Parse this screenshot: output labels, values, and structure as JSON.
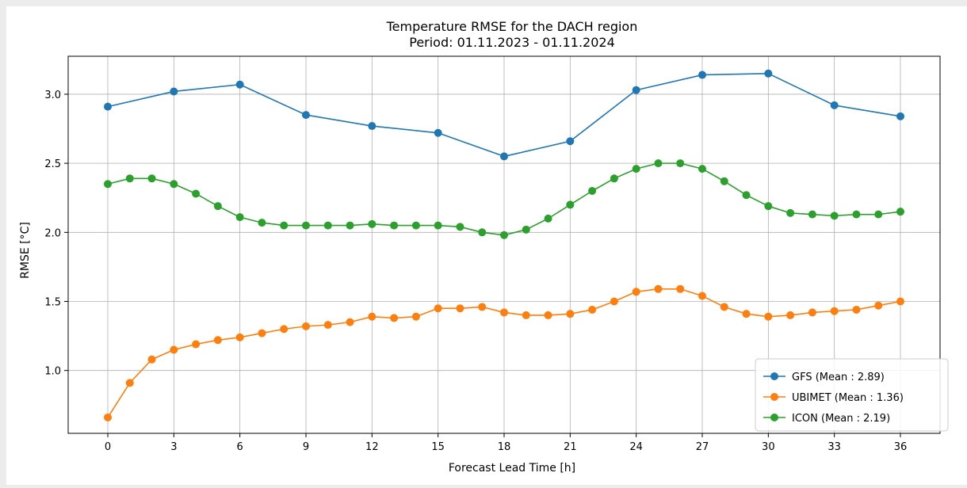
{
  "chart_data": {
    "type": "line",
    "title": "Temperature RMSE for the DACH region",
    "subtitle": "Period: 01.11.2023 - 01.11.2024",
    "xlabel": "Forecast Lead Time [h]",
    "ylabel": "RMSE [°C]",
    "xlim": [
      -1.8,
      37.8
    ],
    "ylim": [
      0.545,
      3.275
    ],
    "xticks": [
      0,
      3,
      6,
      9,
      12,
      15,
      18,
      21,
      24,
      27,
      30,
      33,
      36
    ],
    "yticks": [
      1.0,
      1.5,
      2.0,
      2.5,
      3.0
    ],
    "ytick_labels": [
      "1.0",
      "1.5",
      "2.0",
      "2.5",
      "3.0"
    ],
    "grid": true,
    "legend_position": "lower-right",
    "series": [
      {
        "name": "GFS (Mean : 2.89)",
        "color": "#1f77b4",
        "x": [
          0,
          3,
          6,
          9,
          12,
          15,
          18,
          21,
          24,
          27,
          30,
          33,
          36
        ],
        "y": [
          2.91,
          3.02,
          3.07,
          2.85,
          2.77,
          2.72,
          2.55,
          2.66,
          3.03,
          3.14,
          3.15,
          2.92,
          2.84
        ]
      },
      {
        "name": "UBIMET (Mean : 1.36)",
        "color": "#ff7f0e",
        "x": [
          0,
          1,
          2,
          3,
          4,
          5,
          6,
          7,
          8,
          9,
          10,
          11,
          12,
          13,
          14,
          15,
          16,
          17,
          18,
          19,
          20,
          21,
          22,
          23,
          24,
          25,
          26,
          27,
          28,
          29,
          30,
          31,
          32,
          33,
          34,
          35,
          36
        ],
        "y": [
          0.66,
          0.91,
          1.08,
          1.15,
          1.19,
          1.22,
          1.24,
          1.27,
          1.3,
          1.32,
          1.33,
          1.35,
          1.39,
          1.38,
          1.39,
          1.45,
          1.45,
          1.46,
          1.42,
          1.4,
          1.4,
          1.41,
          1.44,
          1.5,
          1.57,
          1.59,
          1.59,
          1.54,
          1.46,
          1.41,
          1.39,
          1.4,
          1.42,
          1.43,
          1.44,
          1.47,
          1.5
        ]
      },
      {
        "name": "ICON (Mean : 2.19)",
        "color": "#2ca02c",
        "x": [
          0,
          1,
          2,
          3,
          4,
          5,
          6,
          7,
          8,
          9,
          10,
          11,
          12,
          13,
          14,
          15,
          16,
          17,
          18,
          19,
          20,
          21,
          22,
          23,
          24,
          25,
          26,
          27,
          28,
          29,
          30,
          31,
          32,
          33,
          34,
          35,
          36
        ],
        "y": [
          2.35,
          2.39,
          2.39,
          2.35,
          2.28,
          2.19,
          2.11,
          2.07,
          2.05,
          2.05,
          2.05,
          2.05,
          2.06,
          2.05,
          2.05,
          2.05,
          2.04,
          2.0,
          1.98,
          2.02,
          2.1,
          2.2,
          2.3,
          2.39,
          2.46,
          2.5,
          2.5,
          2.46,
          2.37,
          2.27,
          2.19,
          2.14,
          2.13,
          2.12,
          2.13,
          2.13,
          2.15
        ]
      }
    ]
  }
}
